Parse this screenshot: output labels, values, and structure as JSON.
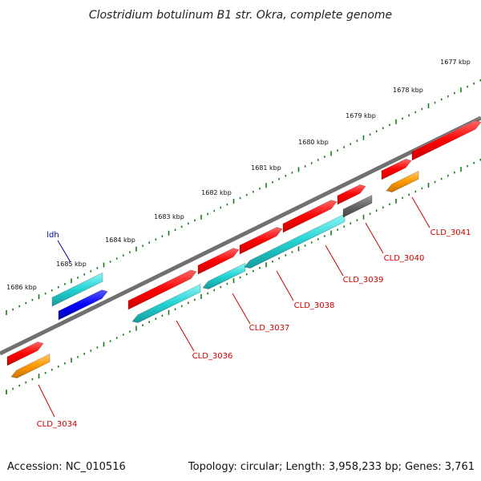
{
  "title": "Clostridium botulinum B1 str. Okra, complete genome",
  "footer": {
    "accession": "Accession: NC_010516",
    "summary": "Topology: circular; Length: 3,958,233 bp; Genes: 3,761"
  },
  "kbp_ticks": [
    "1677 kbp",
    "1678 kbp",
    "1679 kbp",
    "1680 kbp",
    "1681 kbp",
    "1682 kbp",
    "1683 kbp",
    "1684 kbp",
    "1685 kbp",
    "1686 kbp"
  ],
  "gene_labels": [
    "CLD_3034",
    "CLD_3036",
    "CLD_3037",
    "CLD_3038",
    "CLD_3039",
    "CLD_3040",
    "CLD_3041"
  ],
  "special_labels": {
    "ldh": "ldh"
  },
  "colors": {
    "backbone": "#707070",
    "tick": "#1a7a1a",
    "cds_red": "#ff0000",
    "cds_cyan": "#22d3d3",
    "cds_blue": "#0000ff",
    "cds_orange": "#ff9900",
    "cds_gray": "#666666",
    "label_red": "#cc0000",
    "label_blue": "#000099"
  }
}
